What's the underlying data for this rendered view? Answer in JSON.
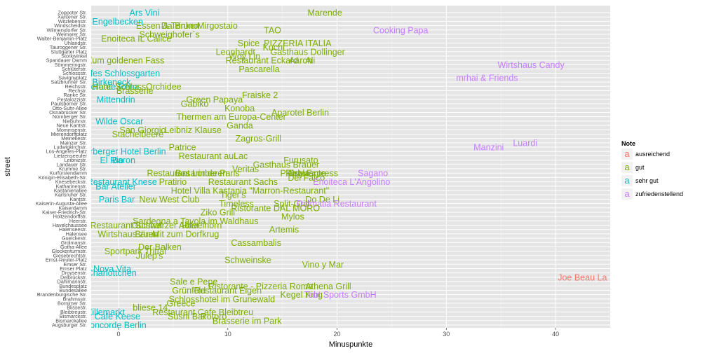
{
  "chart_data": {
    "type": "scatter",
    "title": "",
    "xlabel": "Minuspunkte",
    "ylabel": "street",
    "xlim": [
      -2.5,
      45
    ],
    "x_ticks": [
      0,
      10,
      20,
      30,
      40
    ],
    "x_tick_labels": [
      "0",
      "10",
      "20",
      "30",
      "40"
    ],
    "grid": true,
    "legend_position": "right",
    "legend": {
      "title": "Note",
      "entries": [
        {
          "key": "ausreichend",
          "label": "ausreichend",
          "color": "#F8766D"
        },
        {
          "key": "gut",
          "label": "gut",
          "color": "#7CAE00"
        },
        {
          "key": "sehr gut",
          "label": "sehr gut",
          "color": "#00BFC4"
        },
        {
          "key": "zufriedenstellend",
          "label": "zufriedenstellend",
          "color": "#C77CFF"
        }
      ]
    },
    "streets": [
      "Augsburger Str.",
      "Bismarckallee",
      "Bismarckstr.",
      "Bleibtreustr.",
      "Blissestr.",
      "Bornimer Str.",
      "Brahmsstr.",
      "Brandenburgische Str.",
      "Bundesallee",
      "Bundesplatz",
      "Dahlmannstr.",
      "Delbrückstr.",
      "Droysenstr.",
      "Emser Platz",
      "Emser Str.",
      "Ernst-Reuter-Platz",
      "Giesebrechtstr.",
      "Glockenturmstr.",
      "Gotha-Allee",
      "Grolmanstr.",
      "Gueickestr.",
      "Halensee",
      "Halenseestr.",
      "Havelchaussee",
      "Heerstr.",
      "Holtzendorffstr.",
      "Kaiser-Friedrich-Str.",
      "Kaiserdamm",
      "Kaiserin-Augusta-Allee",
      "Kantstr.",
      "Karlsruher Str.",
      "Kastanienallee",
      "Katharinenstr.",
      "Knesebeckstr.",
      "Königin-Elisabeth-Str.",
      "Kurfürstendamm",
      "Krumme Str.",
      "Landauer Str.",
      "Leibnizstr.",
      "Lietzenseeufer",
      "Los-Angeles-Platz",
      "Ludwigkirchstr.",
      "Mainzer Str.",
      "Meinekestr.",
      "Mierendorffplatz",
      "Mommsenstr.",
      "Neue Kantstr.",
      "Niebuhrstr.",
      "Nürnberger Str.",
      "Osnabrücker Str.",
      "Otto-Suhr-Allee",
      "Paulsborner Str.",
      "Pestalozzistr.",
      "Ranke Str.",
      "Rechstr.",
      "Reichsstr.",
      "Salzbrunner Str.",
      "Savignyplatz",
      "Schlossstr.",
      "Schlüterstr.",
      "Sömmeringstr.",
      "Spandauer Damm",
      "Storkwinkel",
      "Stuttgarter Platz",
      "Tauroggener Str.",
      "Uhlandstr.",
      "Walter-Benjamin-Platz",
      "Weimarer Str.",
      "Wilmersdorfer Str.",
      "Windscheidstr.",
      "Witzlebenstr.",
      "Xantener Str.",
      "Zoppoter Str."
    ],
    "points": [
      {
        "label": "Ars Vini",
        "street": "Zoppoter Str.",
        "x": 1,
        "note": "sehr gut"
      },
      {
        "label": "Marende",
        "street": "Zoppoter Str.",
        "x": 17.3,
        "note": "gut"
      },
      {
        "label": "Engelbecken",
        "street": "Witzlebenstr.",
        "x": -2.4,
        "note": "sehr gut"
      },
      {
        "label": "Essen & Trinken",
        "street": "Windscheidstr.",
        "x": 1.6,
        "note": "gut"
      },
      {
        "label": "Da Bruno",
        "street": "Windscheidstr.",
        "x": 3.9,
        "note": "gut"
      },
      {
        "label": "Mirgostaio",
        "street": "Windscheidstr.",
        "x": 7.2,
        "note": "gut"
      },
      {
        "label": "TAO",
        "street": "Wilmersdorfer Str.",
        "x": 13.3,
        "note": "gut"
      },
      {
        "label": "Cooking Papa",
        "street": "Wilmersdorfer Str.",
        "x": 23.3,
        "note": "zufriedenstellend"
      },
      {
        "label": "Schweighofer`s",
        "street": "Weimarer Str.",
        "x": 1.9,
        "note": "gut"
      },
      {
        "label": "Enoiteca IL Calice",
        "street": "Walter-Benjamin-Platz",
        "x": -1.6,
        "note": "gut"
      },
      {
        "label": "Spice",
        "street": "Uhlandstr.",
        "x": 10.9,
        "note": "gut"
      },
      {
        "label": "PIZZERIA ITALIA",
        "street": "Uhlandstr.",
        "x": 13.3,
        "note": "gut"
      },
      {
        "label": "Kuchi",
        "street": "Tauroggener Str.",
        "x": 13.2,
        "note": "gut"
      },
      {
        "label": "Leonhardt",
        "street": "Stuttgarter Platz",
        "x": 8.9,
        "note": "gut"
      },
      {
        "label": "Gasthaus Dollinger",
        "street": "Stuttgarter Platz",
        "x": 13.9,
        "note": "gut"
      },
      {
        "label": "Woy Lin",
        "street": "Storkwinkel",
        "x": 10.1,
        "note": "gut"
      },
      {
        "label": "Restaurant Eckard",
        "street": "Spandauer Damm",
        "x": 9.8,
        "note": "gut"
      },
      {
        "label": "Aaron",
        "street": "Spandauer Damm",
        "x": 15.6,
        "note": "gut"
      },
      {
        "label": "Ali",
        "street": "Spandauer Damm",
        "x": 17.1,
        "note": "gut"
      },
      {
        "label": "Zum goldenen Fass",
        "street": "Spandauer Damm",
        "x": -2.9,
        "note": "gut"
      },
      {
        "label": "Wirtshaus Candy",
        "street": "Sömmeringstr.",
        "x": 34.7,
        "note": "zufriedenstellend"
      },
      {
        "label": "Pascarella",
        "street": "Schlüterstr.",
        "x": 11,
        "note": "gut"
      },
      {
        "label": "Cafes Schlossgarten",
        "street": "Schlossstr.",
        "x": -3.6,
        "note": "sehr gut"
      },
      {
        "label": "mrhai & Friends",
        "street": "Savignyplatz",
        "x": 30.9,
        "note": "zufriedenstellend"
      },
      {
        "label": "Birkeneck",
        "street": "Salzbrunner Str.",
        "x": -2.4,
        "note": "sehr gut"
      },
      {
        "label": "Ristorante Rena",
        "street": "Reichsstr.",
        "x": -3.9,
        "note": "sehr gut"
      },
      {
        "label": "Hotel Schloss",
        "street": "Reichsstr.",
        "x": -2.4,
        "note": "gut"
      },
      {
        "label": "Orchidee",
        "street": "Reichsstr.",
        "x": 2.5,
        "note": "gut"
      },
      {
        "label": "Brasserie",
        "street": "Rechstr.",
        "x": -0.2,
        "note": "gut"
      },
      {
        "label": "Fraiske 2",
        "street": "Ranke Str.",
        "x": 11.3,
        "note": "gut"
      },
      {
        "label": "Mittendrin",
        "street": "Pestalozzistr.",
        "x": -2,
        "note": "sehr gut"
      },
      {
        "label": "Green Papaya",
        "street": "Pestalozzistr.",
        "x": 6.2,
        "note": "gut"
      },
      {
        "label": "Gabiko",
        "street": "Paulsborner Str.",
        "x": 5.7,
        "note": "gut"
      },
      {
        "label": "Konoba",
        "street": "Otto-Suhr-Allee",
        "x": 9.7,
        "note": "gut"
      },
      {
        "label": "Aparotel Berlin",
        "street": "Osnabrücker Str.",
        "x": 14,
        "note": "gut"
      },
      {
        "label": "Thermen am Europa-Center",
        "street": "Nürnberger Str.",
        "x": 5.3,
        "note": "gut"
      },
      {
        "label": "Wilde Oscar",
        "street": "Niebuhrstr.",
        "x": -2.1,
        "note": "sehr gut"
      },
      {
        "label": "Ganda",
        "street": "Neue Kantstr.",
        "x": 9.9,
        "note": "gut"
      },
      {
        "label": "San Giorgio",
        "street": "Mommsenstr.",
        "x": 0.1,
        "note": "gut"
      },
      {
        "label": "Leibniz Klause",
        "street": "Mommsenstr.",
        "x": 4.2,
        "note": "gut"
      },
      {
        "label": "Stachelbeere",
        "street": "Mierendorffplatz",
        "x": -0.6,
        "note": "gut"
      },
      {
        "label": "Zagros-Grill",
        "street": "Meinekestr.",
        "x": 10.7,
        "note": "gut"
      },
      {
        "label": "Luardi",
        "street": "Mainzer Str.",
        "x": 36.1,
        "note": "zufriedenstellend"
      },
      {
        "label": "Patrice",
        "street": "Ludwigkirchstr.",
        "x": 4.6,
        "note": "gut"
      },
      {
        "label": "Manzini",
        "street": "Ludwigkirchstr.",
        "x": 32.5,
        "note": "zufriedenstellend"
      },
      {
        "label": "Sorberger Hotel Berlin",
        "street": "Los-Angeles-Platz",
        "x": -3.6,
        "note": "sehr gut"
      },
      {
        "label": "Restaurant auLac",
        "street": "Lietzenseeufer",
        "x": 5.5,
        "note": "gut"
      },
      {
        "label": "El Rio",
        "street": "Leibnizstr.",
        "x": -1.7,
        "note": "sehr gut"
      },
      {
        "label": "Baron",
        "street": "Leibnizstr.",
        "x": -0.6,
        "note": "sehr gut"
      },
      {
        "label": "Furusato",
        "street": "Leibnizstr.",
        "x": 15.1,
        "note": "gut"
      },
      {
        "label": "Gasthaus Brauer",
        "street": "Landauer Str.",
        "x": 12.3,
        "note": "gut"
      },
      {
        "label": "Restaurant Lorberen",
        "street": "Kurfürstendamm",
        "x": 2.6,
        "note": "gut"
      },
      {
        "label": "Basarin de Paris",
        "street": "Kurfürstendamm",
        "x": 5.2,
        "note": "gut"
      },
      {
        "label": "Pianola",
        "street": "Kurfürstendamm",
        "x": 14.8,
        "note": "gut"
      },
      {
        "label": "Ristorante",
        "street": "Kurfürstendamm",
        "x": 15.3,
        "note": "gut"
      },
      {
        "label": "Orly Express",
        "street": "Kurfürstendamm",
        "x": 15.5,
        "note": "gut"
      },
      {
        "label": "Sagano",
        "street": "Kurfürstendamm",
        "x": 21.9,
        "note": "zufriedenstellend"
      },
      {
        "label": "Veritas",
        "street": "Krumme Str.",
        "x": 10.4,
        "note": "gut"
      },
      {
        "label": "Del Falco",
        "street": "Königin-Elisabeth-Str.",
        "x": 15.5,
        "note": "gut"
      },
      {
        "label": "Restaurant Knese",
        "street": "Knesebeckstr.",
        "x": -2.9,
        "note": "sehr gut"
      },
      {
        "label": "Pratirio",
        "street": "Knesebeckstr.",
        "x": 3.7,
        "note": "gut"
      },
      {
        "label": "Restaurant Sachs",
        "street": "Knesebeckstr.",
        "x": 8.2,
        "note": "gut"
      },
      {
        "label": "Enoiteca L'Angolino",
        "street": "Knesebeckstr.",
        "x": 17.8,
        "note": "zufriedenstellend"
      },
      {
        "label": "Bar Atelier",
        "street": "Katharinenstr.",
        "x": -2.1,
        "note": "sehr gut"
      },
      {
        "label": "Hotel Villa Kastania \"Marron-Restaurant\"",
        "street": "Kastanienallee",
        "x": 4.8,
        "note": "gut"
      },
      {
        "label": "Tiger's",
        "street": "Karlsruher Str.",
        "x": 9.3,
        "note": "gut"
      },
      {
        "label": "Paris Bar",
        "street": "Kantstr.",
        "x": -1.8,
        "note": "sehr gut"
      },
      {
        "label": "New West Club",
        "street": "Kantstr.",
        "x": 1.9,
        "note": "gut"
      },
      {
        "label": "Do De Li",
        "street": "Kantstr.",
        "x": 17.1,
        "note": "gut"
      },
      {
        "label": "Timeless",
        "street": "Kaiserin-Augusta-Allee",
        "x": 9.2,
        "note": "gut"
      },
      {
        "label": "Split-Grill",
        "street": "Kaiserin-Augusta-Allee",
        "x": 14.2,
        "note": "gut"
      },
      {
        "label": "Dalmatia Restaurant",
        "street": "Kaiserin-Augusta-Allee",
        "x": 16.3,
        "note": "zufriedenstellend"
      },
      {
        "label": "Ristorante DAL MORO",
        "street": "Kaiserdamm",
        "x": 10.3,
        "note": "gut"
      },
      {
        "label": "Ziko Grill",
        "street": "Kaiser-Friedrich-Str.",
        "x": 7.5,
        "note": "gut"
      },
      {
        "label": "Mylos",
        "street": "Holtzendorffstr.",
        "x": 14.9,
        "note": "gut"
      },
      {
        "label": "Sardegna a Tavola im Waldhaus",
        "street": "Heerstr.",
        "x": 1.3,
        "note": "gut"
      },
      {
        "label": "Restaurant Schwarzer Adler",
        "street": "Havelchaussee",
        "x": -2.6,
        "note": "gut"
      },
      {
        "label": "Gutshof",
        "street": "Havelchaussee",
        "x": 1.2,
        "note": "gut"
      },
      {
        "label": "Havelhorn",
        "street": "Havelchaussee",
        "x": 5.8,
        "note": "gut"
      },
      {
        "label": "Artemis",
        "street": "Halenseestr.",
        "x": 13.8,
        "note": "gut"
      },
      {
        "label": "Wirtshaus zum",
        "street": "Halensee",
        "x": -1.9,
        "note": "gut"
      },
      {
        "label": "Bären",
        "street": "Halensee",
        "x": 1.5,
        "note": "gut"
      },
      {
        "label": "Mit zum Dorfkrug",
        "street": "Halensee",
        "x": 3.1,
        "note": "gut"
      },
      {
        "label": "Cassambalis",
        "street": "Grolmanstr.",
        "x": 10.3,
        "note": "gut"
      },
      {
        "label": "Der Balken",
        "street": "Gotha-Allee",
        "x": 1.8,
        "note": "gut"
      },
      {
        "label": "Sportpark Trittal",
        "street": "Glockenturmstr.",
        "x": -1.3,
        "note": "gut"
      },
      {
        "label": "Julep's",
        "street": "Giesebrechtstr.",
        "x": 1.6,
        "note": "gut"
      },
      {
        "label": "Schweinske",
        "street": "Ernst-Reuter-Platz",
        "x": 9.7,
        "note": "gut"
      },
      {
        "label": "Vino y Mar",
        "street": "Emser Str.",
        "x": 16.8,
        "note": "gut"
      },
      {
        "label": "Nova Vita",
        "street": "Emser Platz",
        "x": -2.3,
        "note": "sehr gut"
      },
      {
        "label": "Charlottchen",
        "street": "Droysenstr.",
        "x": -2.9,
        "note": "sehr gut"
      },
      {
        "label": "Joe Beau La",
        "street": "Delbrückstr.",
        "x": 40.2,
        "note": "ausreichend"
      },
      {
        "label": "Sale e Pepe",
        "street": "Dahlmannstr.",
        "x": 4.7,
        "note": "gut"
      },
      {
        "label": "Ristorante - Pizzeria Roma",
        "street": "Bundesplatz",
        "x": 8.2,
        "note": "gut"
      },
      {
        "label": "Athena Grill",
        "street": "Bundesplatz",
        "x": 17.1,
        "note": "gut"
      },
      {
        "label": "Grünfeld",
        "street": "Bundesallee",
        "x": 4.9,
        "note": "gut"
      },
      {
        "label": "Restaurant Eigen",
        "street": "Bundesallee",
        "x": 6.9,
        "note": "gut"
      },
      {
        "label": "Kegel King",
        "street": "Brandenburgische Str.",
        "x": 14.8,
        "note": "gut"
      },
      {
        "label": "Tebt Sports GmbH",
        "street": "Brandenburgische Str.",
        "x": 17,
        "note": "zufriedenstellend"
      },
      {
        "label": "Schlosshotel im Grunewald",
        "street": "Brahmsstr.",
        "x": 4.6,
        "note": "gut"
      },
      {
        "label": "Greece",
        "street": "Bornimer Str.",
        "x": 4.4,
        "note": "gut"
      },
      {
        "label": "bliese 14",
        "street": "Blissestr.",
        "x": 1.3,
        "note": "gut"
      },
      {
        "label": "Zillemarkt",
        "street": "Bleibtreustr.",
        "x": -2.9,
        "note": "sehr gut"
      },
      {
        "label": "Restaurant Cafe Bleibtreu",
        "street": "Bleibtreustr.",
        "x": 3.1,
        "note": "gut"
      },
      {
        "label": "Cafe Keese",
        "street": "Bismarckstr.",
        "x": -2.2,
        "note": "sehr gut"
      },
      {
        "label": "Sushi Bar",
        "street": "Bismarckstr.",
        "x": 4.5,
        "note": "gut"
      },
      {
        "label": "Rotoro",
        "street": "Bismarckstr.",
        "x": 7.5,
        "note": "gut"
      },
      {
        "label": "Brasserie im Park",
        "street": "Bismarckallee",
        "x": 8.6,
        "note": "gut"
      },
      {
        "label": "Concorde Berlin",
        "street": "Augsburger Str.",
        "x": -3.2,
        "note": "sehr gut"
      }
    ]
  }
}
